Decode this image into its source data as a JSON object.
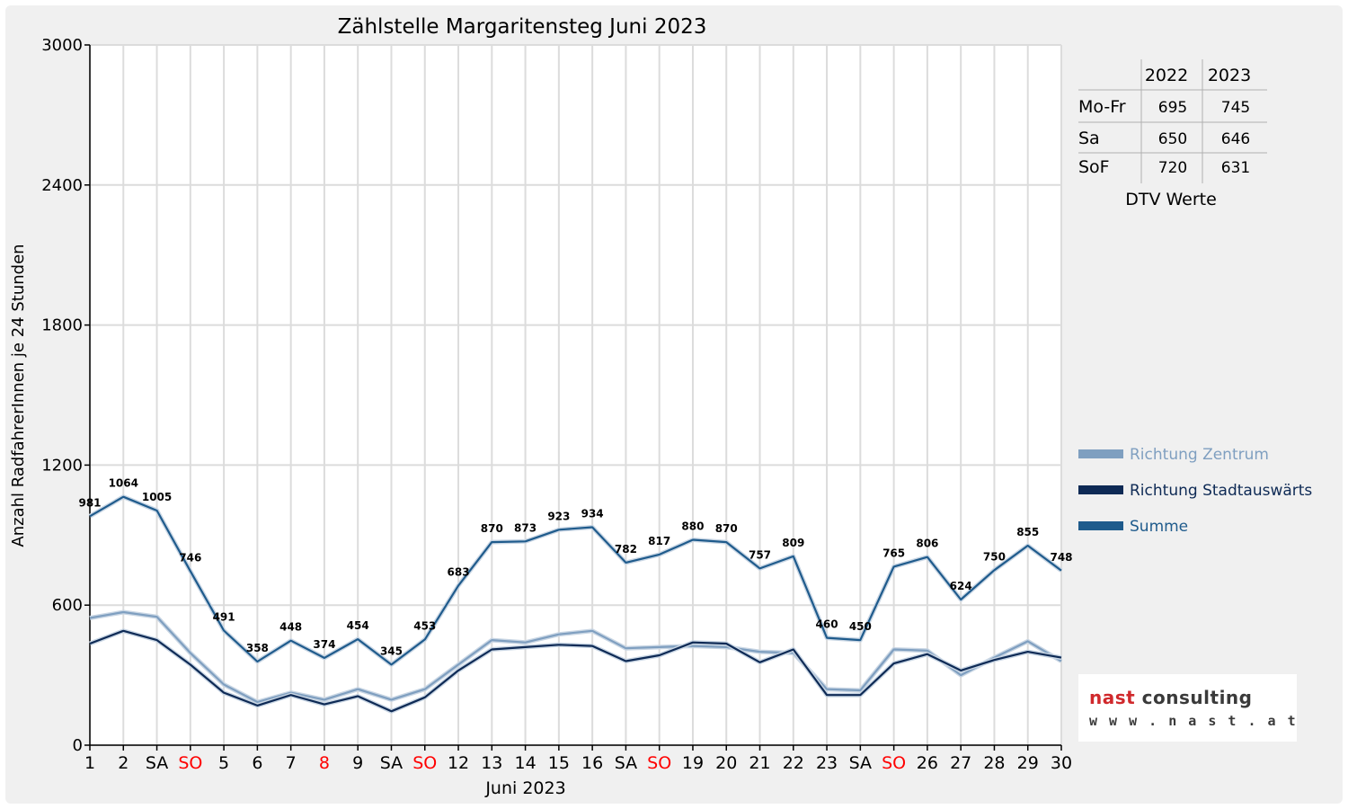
{
  "chart_data": {
    "type": "line",
    "title": "Zählstelle Margaritensteg Juni 2023",
    "xlabel": "Juni 2023",
    "ylabel": "Anzahl RadfahrerInnen je 24 Stunden",
    "ylim": [
      0,
      3000
    ],
    "yticks": [
      0,
      600,
      1200,
      1800,
      2400,
      3000
    ],
    "grid": true,
    "legend_position": "right",
    "categories": [
      "1",
      "2",
      "SA",
      "SO",
      "5",
      "6",
      "7",
      "8",
      "9",
      "SA",
      "SO",
      "12",
      "13",
      "14",
      "15",
      "16",
      "SA",
      "SO",
      "19",
      "20",
      "21",
      "22",
      "23",
      "SA",
      "SO",
      "26",
      "27",
      "28",
      "29",
      "30"
    ],
    "highlight_categories": [
      3,
      7,
      10,
      17,
      24
    ],
    "series": [
      {
        "name": "Richtung Zentrum",
        "color": "#7f9fc0",
        "values": [
          545,
          570,
          550,
          395,
          260,
          185,
          225,
          195,
          240,
          195,
          240,
          345,
          450,
          440,
          475,
          490,
          415,
          420,
          425,
          420,
          400,
          395,
          240,
          235,
          410,
          405,
          300,
          375,
          445,
          360
        ]
      },
      {
        "name": "Richtung Stadtauswärts",
        "color": "#0e2a55",
        "values": [
          435,
          490,
          450,
          345,
          225,
          170,
          215,
          175,
          210,
          145,
          205,
          320,
          410,
          420,
          430,
          425,
          360,
          385,
          440,
          435,
          355,
          410,
          215,
          215,
          350,
          390,
          320,
          365,
          400,
          375
        ]
      },
      {
        "name": "Summe",
        "color": "#1f5b8c",
        "values": [
          981,
          1064,
          1005,
          746,
          491,
          358,
          448,
          374,
          454,
          345,
          453,
          683,
          870,
          873,
          923,
          934,
          782,
          817,
          880,
          870,
          757,
          809,
          460,
          450,
          765,
          806,
          624,
          750,
          855,
          748
        ]
      }
    ],
    "data_labels": [
      "981",
      "1064",
      "1005",
      "746",
      "491",
      "358",
      "448",
      "374",
      "454",
      "345",
      "453",
      "683",
      "870",
      "873",
      "923",
      "934",
      "782",
      "817",
      "880",
      "870",
      "757",
      "809",
      "460",
      "450",
      "765",
      "806",
      "624",
      "750",
      "855",
      "748"
    ]
  },
  "dtv_table": {
    "columns": [
      "2022",
      "2023"
    ],
    "rows": [
      {
        "label": "Mo-Fr",
        "values": [
          "695",
          "745"
        ]
      },
      {
        "label": "Sa",
        "values": [
          "650",
          "646"
        ]
      },
      {
        "label": "SoF",
        "values": [
          "720",
          "631"
        ]
      }
    ],
    "caption": "DTV Werte"
  },
  "logo": {
    "word1": "nast",
    "word2": "consulting",
    "url": "w w w . n a s t . a t"
  },
  "colors": {
    "weekend_highlight": "#ff0000",
    "grid": "#dcdcdc",
    "axis": "#000000"
  }
}
